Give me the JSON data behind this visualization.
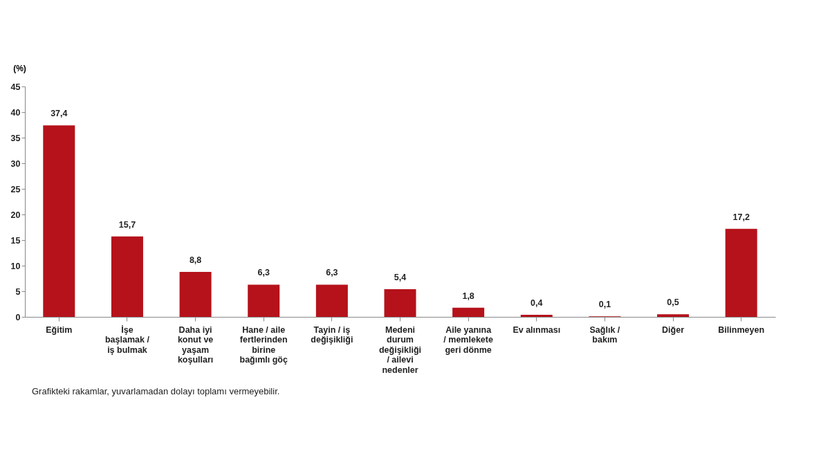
{
  "chart_data": {
    "type": "bar",
    "ylabel": "(%)",
    "categories": [
      "Eğitim",
      "İşe başlamak / iş bulmak",
      "Daha iyi konut ve yaşam koşulları",
      "Hane / aile fertlerinden birine bağımlı göç",
      "Tayin / iş değişikliği",
      "Medeni durum değişikliği / ailevi nedenler",
      "Aile yanına / memlekete geri dönme",
      "Ev alınması",
      "Sağlık / bakım",
      "Diğer",
      "Bilinmeyen"
    ],
    "values": [
      37.4,
      15.7,
      8.8,
      6.3,
      6.3,
      5.4,
      1.8,
      0.4,
      0.1,
      0.5,
      17.2
    ],
    "value_labels": [
      "37,4",
      "15,7",
      "8,8",
      "6,3",
      "6,3",
      "5,4",
      "1,8",
      "0,4",
      "0,1",
      "0,5",
      "17,2"
    ],
    "color": "#b5121b",
    "ylim": [
      0,
      45
    ],
    "yticks": [
      0,
      5,
      10,
      15,
      20,
      25,
      30,
      35,
      40,
      45
    ],
    "annotations": [
      "Grafikteki rakamlar, yuvarlamadan dolayı toplamı vermeyebilir."
    ]
  }
}
